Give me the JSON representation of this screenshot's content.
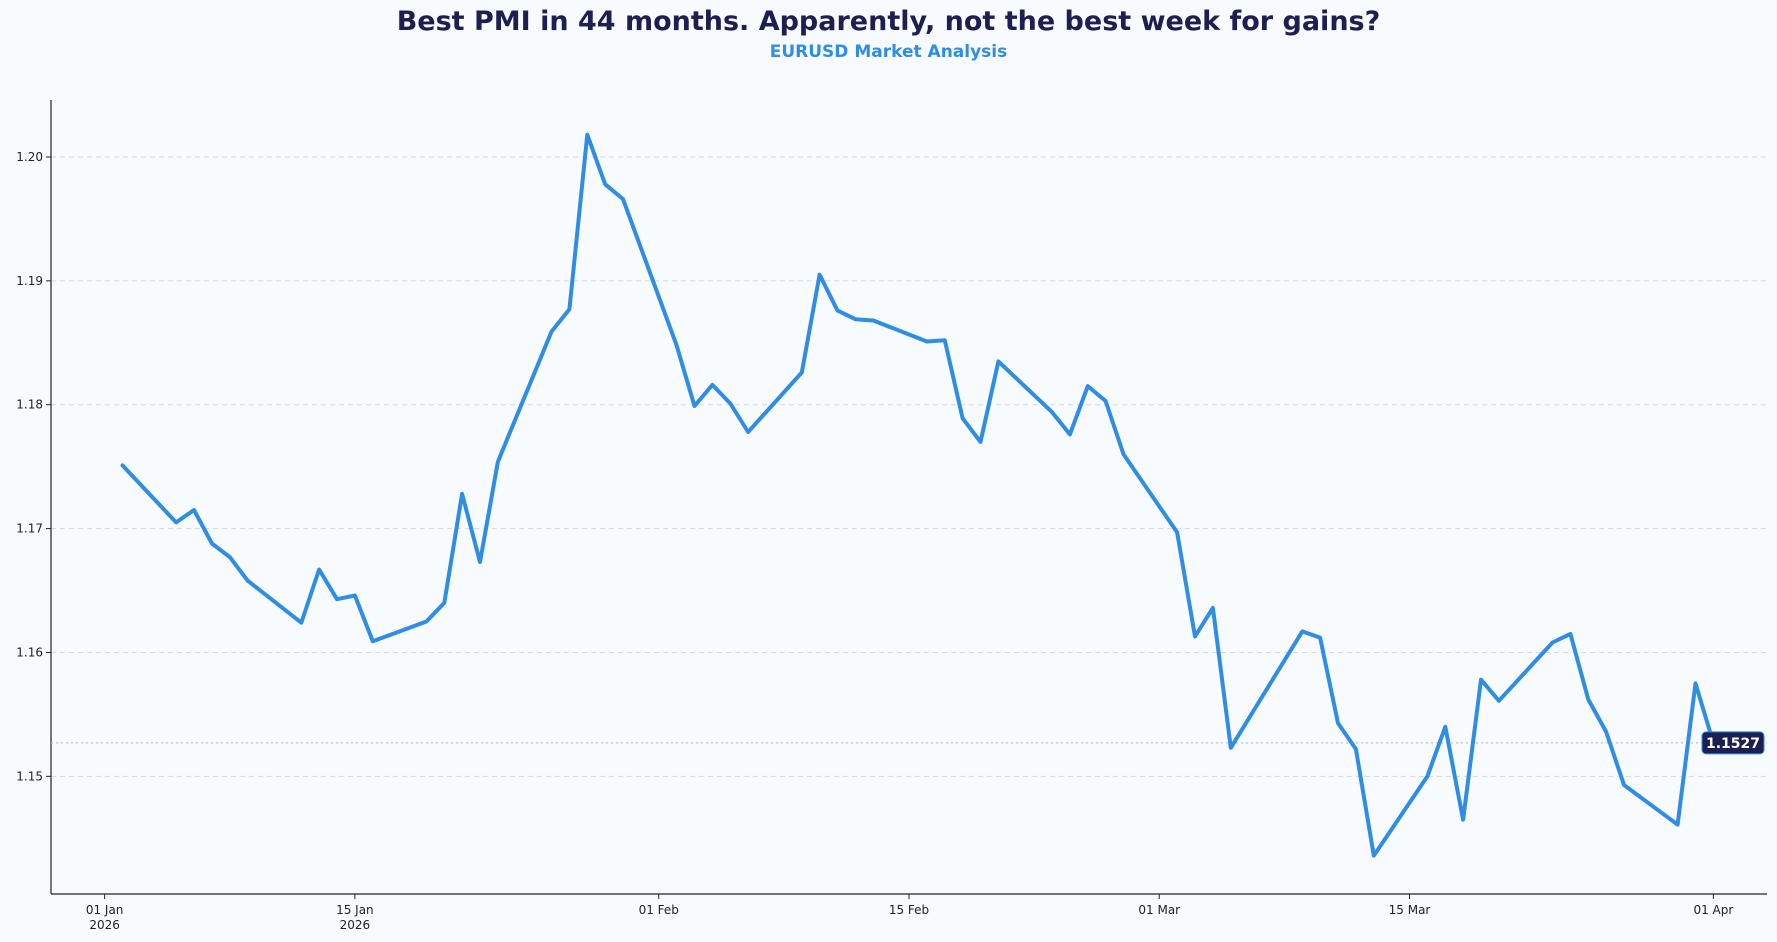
{
  "chart_data": {
    "type": "line",
    "title": "Best PMI in 44 months. Apparently, not the best week for gains?",
    "subtitle": "EURUSD Market Analysis",
    "xlabel": "",
    "ylabel": "",
    "ylim": [
      1.1405,
      1.2046
    ],
    "xlim": [
      "2025-12-29",
      "2026-04-04"
    ],
    "x_ticks": [
      {
        "date": "2026-01-01",
        "label": "01 Jan",
        "sub": "2026"
      },
      {
        "date": "2026-01-15",
        "label": "15 Jan",
        "sub": "2026"
      },
      {
        "date": "2026-02-01",
        "label": "01 Feb",
        "sub": ""
      },
      {
        "date": "2026-02-15",
        "label": "15 Feb",
        "sub": ""
      },
      {
        "date": "2026-03-01",
        "label": "01 Mar",
        "sub": ""
      },
      {
        "date": "2026-03-15",
        "label": "15 Mar",
        "sub": ""
      },
      {
        "date": "2026-04-01",
        "label": "01 Apr",
        "sub": ""
      }
    ],
    "y_ticks": [
      1.15,
      1.16,
      1.17,
      1.18,
      1.19,
      1.2
    ],
    "grid": "horizontal dashed",
    "last_value": 1.1527,
    "last_value_label": "1.1527",
    "series": [
      {
        "x": [
          "2026-01-02",
          "2026-01-05",
          "2026-01-06",
          "2026-01-07",
          "2026-01-08",
          "2026-01-09",
          "2026-01-12",
          "2026-01-13",
          "2026-01-14",
          "2026-01-15",
          "2026-01-16",
          "2026-01-19",
          "2026-01-20",
          "2026-01-21",
          "2026-01-22",
          "2026-01-23",
          "2026-01-26",
          "2026-01-27",
          "2026-01-28",
          "2026-01-29",
          "2026-01-30",
          "2026-02-02",
          "2026-02-03",
          "2026-02-04",
          "2026-02-05",
          "2026-02-06",
          "2026-02-09",
          "2026-02-10",
          "2026-02-11",
          "2026-02-12",
          "2026-02-13",
          "2026-02-16",
          "2026-02-17",
          "2026-02-18",
          "2026-02-19",
          "2026-02-20",
          "2026-02-23",
          "2026-02-24",
          "2026-02-25",
          "2026-02-26",
          "2026-02-27",
          "2026-03-02",
          "2026-03-03",
          "2026-03-04",
          "2026-03-05",
          "2026-03-09",
          "2026-03-10",
          "2026-03-11",
          "2026-03-12",
          "2026-03-13",
          "2026-03-16",
          "2026-03-17",
          "2026-03-18",
          "2026-03-19",
          "2026-03-20",
          "2026-03-23",
          "2026-03-24",
          "2026-03-25",
          "2026-03-26",
          "2026-03-27",
          "2026-03-30",
          "2026-03-31",
          "2026-04-01",
          "2026-04-02"
        ],
        "values": [
          1.1751,
          1.1705,
          1.1715,
          1.1688,
          1.1677,
          1.1658,
          1.1624,
          1.1667,
          1.1643,
          1.1646,
          1.1609,
          1.1625,
          1.164,
          1.1728,
          1.1673,
          1.1754,
          1.1859,
          1.1877,
          1.2018,
          1.1978,
          1.1966,
          1.1848,
          1.1799,
          1.1816,
          1.1801,
          1.1778,
          1.1826,
          1.1905,
          1.1876,
          1.1869,
          1.1868,
          1.1851,
          1.1852,
          1.1789,
          1.177,
          1.1835,
          1.1794,
          1.1776,
          1.1815,
          1.1803,
          1.176,
          1.1697,
          1.1613,
          1.1636,
          1.1523,
          1.1617,
          1.1612,
          1.1543,
          1.1522,
          1.1436,
          1.15,
          1.154,
          1.1465,
          1.1578,
          1.1561,
          1.1608,
          1.1615,
          1.1562,
          1.1536,
          1.1493,
          1.1461,
          1.1575,
          1.1527,
          1.1527
        ]
      }
    ],
    "colors": {
      "line": "#2f8de4",
      "title": "#1c1f4f",
      "subtitle": "#2f8de4",
      "badge_bg": "#1c1f4f",
      "badge_text": "#ffffff"
    }
  }
}
